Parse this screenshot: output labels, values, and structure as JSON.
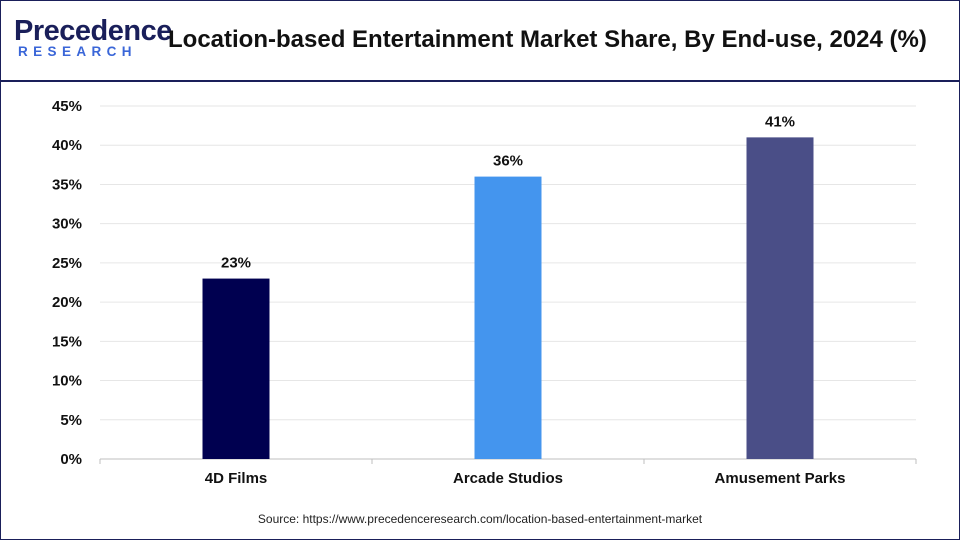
{
  "header": {
    "logo_main": "Precedence",
    "logo_sub": "RESEARCH",
    "title": "Location-based Entertainment Market Share, By End-use, 2024 (%)"
  },
  "source_text": "Source: https://www.precedenceresearch.com/location-based-entertainment-market",
  "colors": {
    "border": "#1a1f5a",
    "logo_main": "#1a1f5a",
    "logo_sub": "#3a66d8",
    "grid": "#e6e6e6",
    "axis": "#bfbfbf"
  },
  "chart_data": {
    "type": "bar",
    "title": "Location-based Entertainment Market Share, By End-use, 2024 (%)",
    "categories": [
      "4D Films",
      "Arcade Studios",
      "Amusement Parks"
    ],
    "values": [
      23,
      36,
      41
    ],
    "value_labels": [
      "23%",
      "36%",
      "41%"
    ],
    "bar_colors": [
      "#000050",
      "#4495ee",
      "#4a4e87"
    ],
    "yticks": [
      0,
      5,
      10,
      15,
      20,
      25,
      30,
      35,
      40,
      45
    ],
    "ytick_labels": [
      "0%",
      "5%",
      "10%",
      "15%",
      "20%",
      "25%",
      "30%",
      "35%",
      "40%",
      "45%"
    ],
    "ylim": [
      0,
      45
    ],
    "grid": true,
    "xlabel": "",
    "ylabel": ""
  }
}
